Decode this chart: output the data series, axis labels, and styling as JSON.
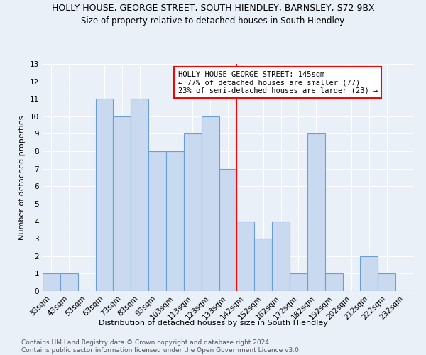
{
  "title": "HOLLY HOUSE, GEORGE STREET, SOUTH HIENDLEY, BARNSLEY, S72 9BX",
  "subtitle": "Size of property relative to detached houses in South Hiendley",
  "xlabel": "Distribution of detached houses by size in South Hiendley",
  "ylabel": "Number of detached properties",
  "footer": "Contains HM Land Registry data © Crown copyright and database right 2024.\nContains public sector information licensed under the Open Government Licence v3.0.",
  "bins": [
    "33sqm",
    "43sqm",
    "53sqm",
    "63sqm",
    "73sqm",
    "83sqm",
    "93sqm",
    "103sqm",
    "113sqm",
    "123sqm",
    "133sqm",
    "142sqm",
    "152sqm",
    "162sqm",
    "172sqm",
    "182sqm",
    "192sqm",
    "202sqm",
    "212sqm",
    "222sqm",
    "232sqm"
  ],
  "values": [
    1,
    1,
    0,
    11,
    10,
    11,
    8,
    8,
    9,
    10,
    7,
    4,
    3,
    4,
    1,
    9,
    1,
    0,
    2,
    1,
    0
  ],
  "bar_color": "#c9d9f0",
  "bar_edge_color": "#6a9fd8",
  "reference_line_label": "HOLLY HOUSE GEORGE STREET: 145sqm",
  "annotation_line1": "← 77% of detached houses are smaller (77)",
  "annotation_line2": "23% of semi-detached houses are larger (23) →",
  "annotation_box_color": "white",
  "annotation_border_color": "red",
  "ref_line_color": "red",
  "ylim": [
    0,
    13
  ],
  "yticks": [
    0,
    1,
    2,
    3,
    4,
    5,
    6,
    7,
    8,
    9,
    10,
    11,
    12,
    13
  ],
  "bg_color": "#eaf0f8",
  "grid_color": "white",
  "title_fontsize": 9,
  "subtitle_fontsize": 8.5,
  "axis_label_fontsize": 8,
  "tick_fontsize": 7.5,
  "footer_fontsize": 6.5,
  "annotation_fontsize": 7.5
}
